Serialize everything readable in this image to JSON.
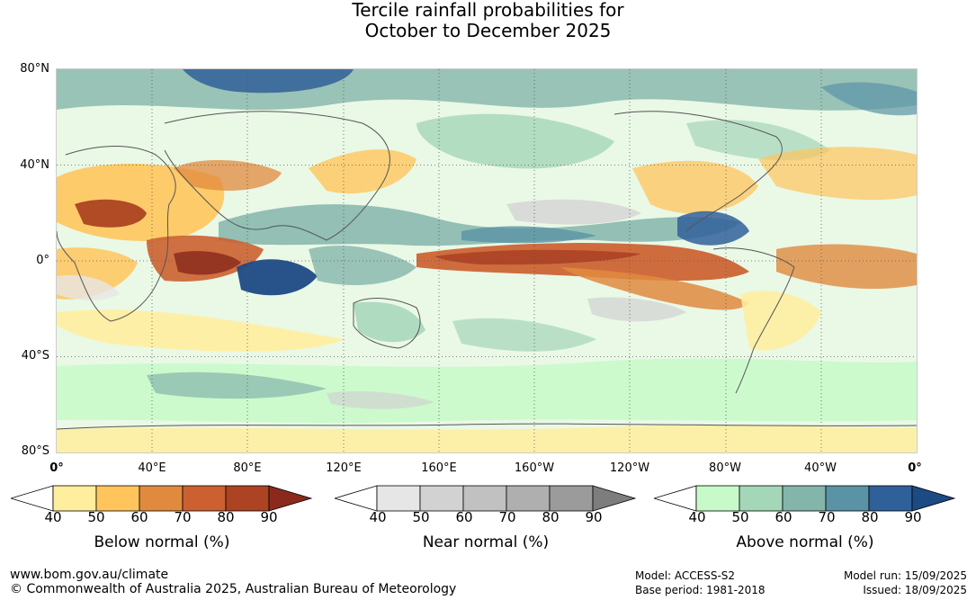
{
  "title_line1": "Tercile rainfall probabilities for",
  "title_line2": "October to December 2025",
  "lat_labels": [
    "80°N",
    "40°N",
    "0°",
    "40°S",
    "80°S"
  ],
  "lon_labels": [
    "0°",
    "40°E",
    "80°E",
    "120°E",
    "160°E",
    "160°W",
    "120°W",
    "80°W",
    "40°W",
    "0°"
  ],
  "colorbars": [
    {
      "title": "Below normal (%)",
      "ticks": [
        "40",
        "50",
        "60",
        "70",
        "80",
        "90"
      ],
      "colors": [
        "#ffffff",
        "#ffee9e",
        "#ffc55c",
        "#e08a3e",
        "#cc6030",
        "#ac4323",
        "#8b2a1c"
      ]
    },
    {
      "title": "Near normal (%)",
      "ticks": [
        "40",
        "50",
        "60",
        "70",
        "80",
        "90"
      ],
      "colors": [
        "#ffffff",
        "#e6e6e6",
        "#d2d2d2",
        "#c1c1c1",
        "#afafaf",
        "#9b9b9b",
        "#7d7d7d"
      ]
    },
    {
      "title": "Above normal (%)",
      "ticks": [
        "40",
        "50",
        "60",
        "70",
        "80",
        "90"
      ],
      "colors": [
        "#ffffff",
        "#c7fac8",
        "#a4d6b8",
        "#84b5ab",
        "#5a93a5",
        "#30609a",
        "#1c4a85"
      ]
    }
  ],
  "footer": {
    "url": "www.bom.gov.au/climate",
    "copyright": "© Commonwealth of Australia 2025, Australian Bureau of Meteorology",
    "model": "Model: ACCESS-S2",
    "base_period": "Base period: 1981-2018",
    "model_run": "Model run: 15/09/2025",
    "issued": "Issued: 18/09/2025"
  }
}
